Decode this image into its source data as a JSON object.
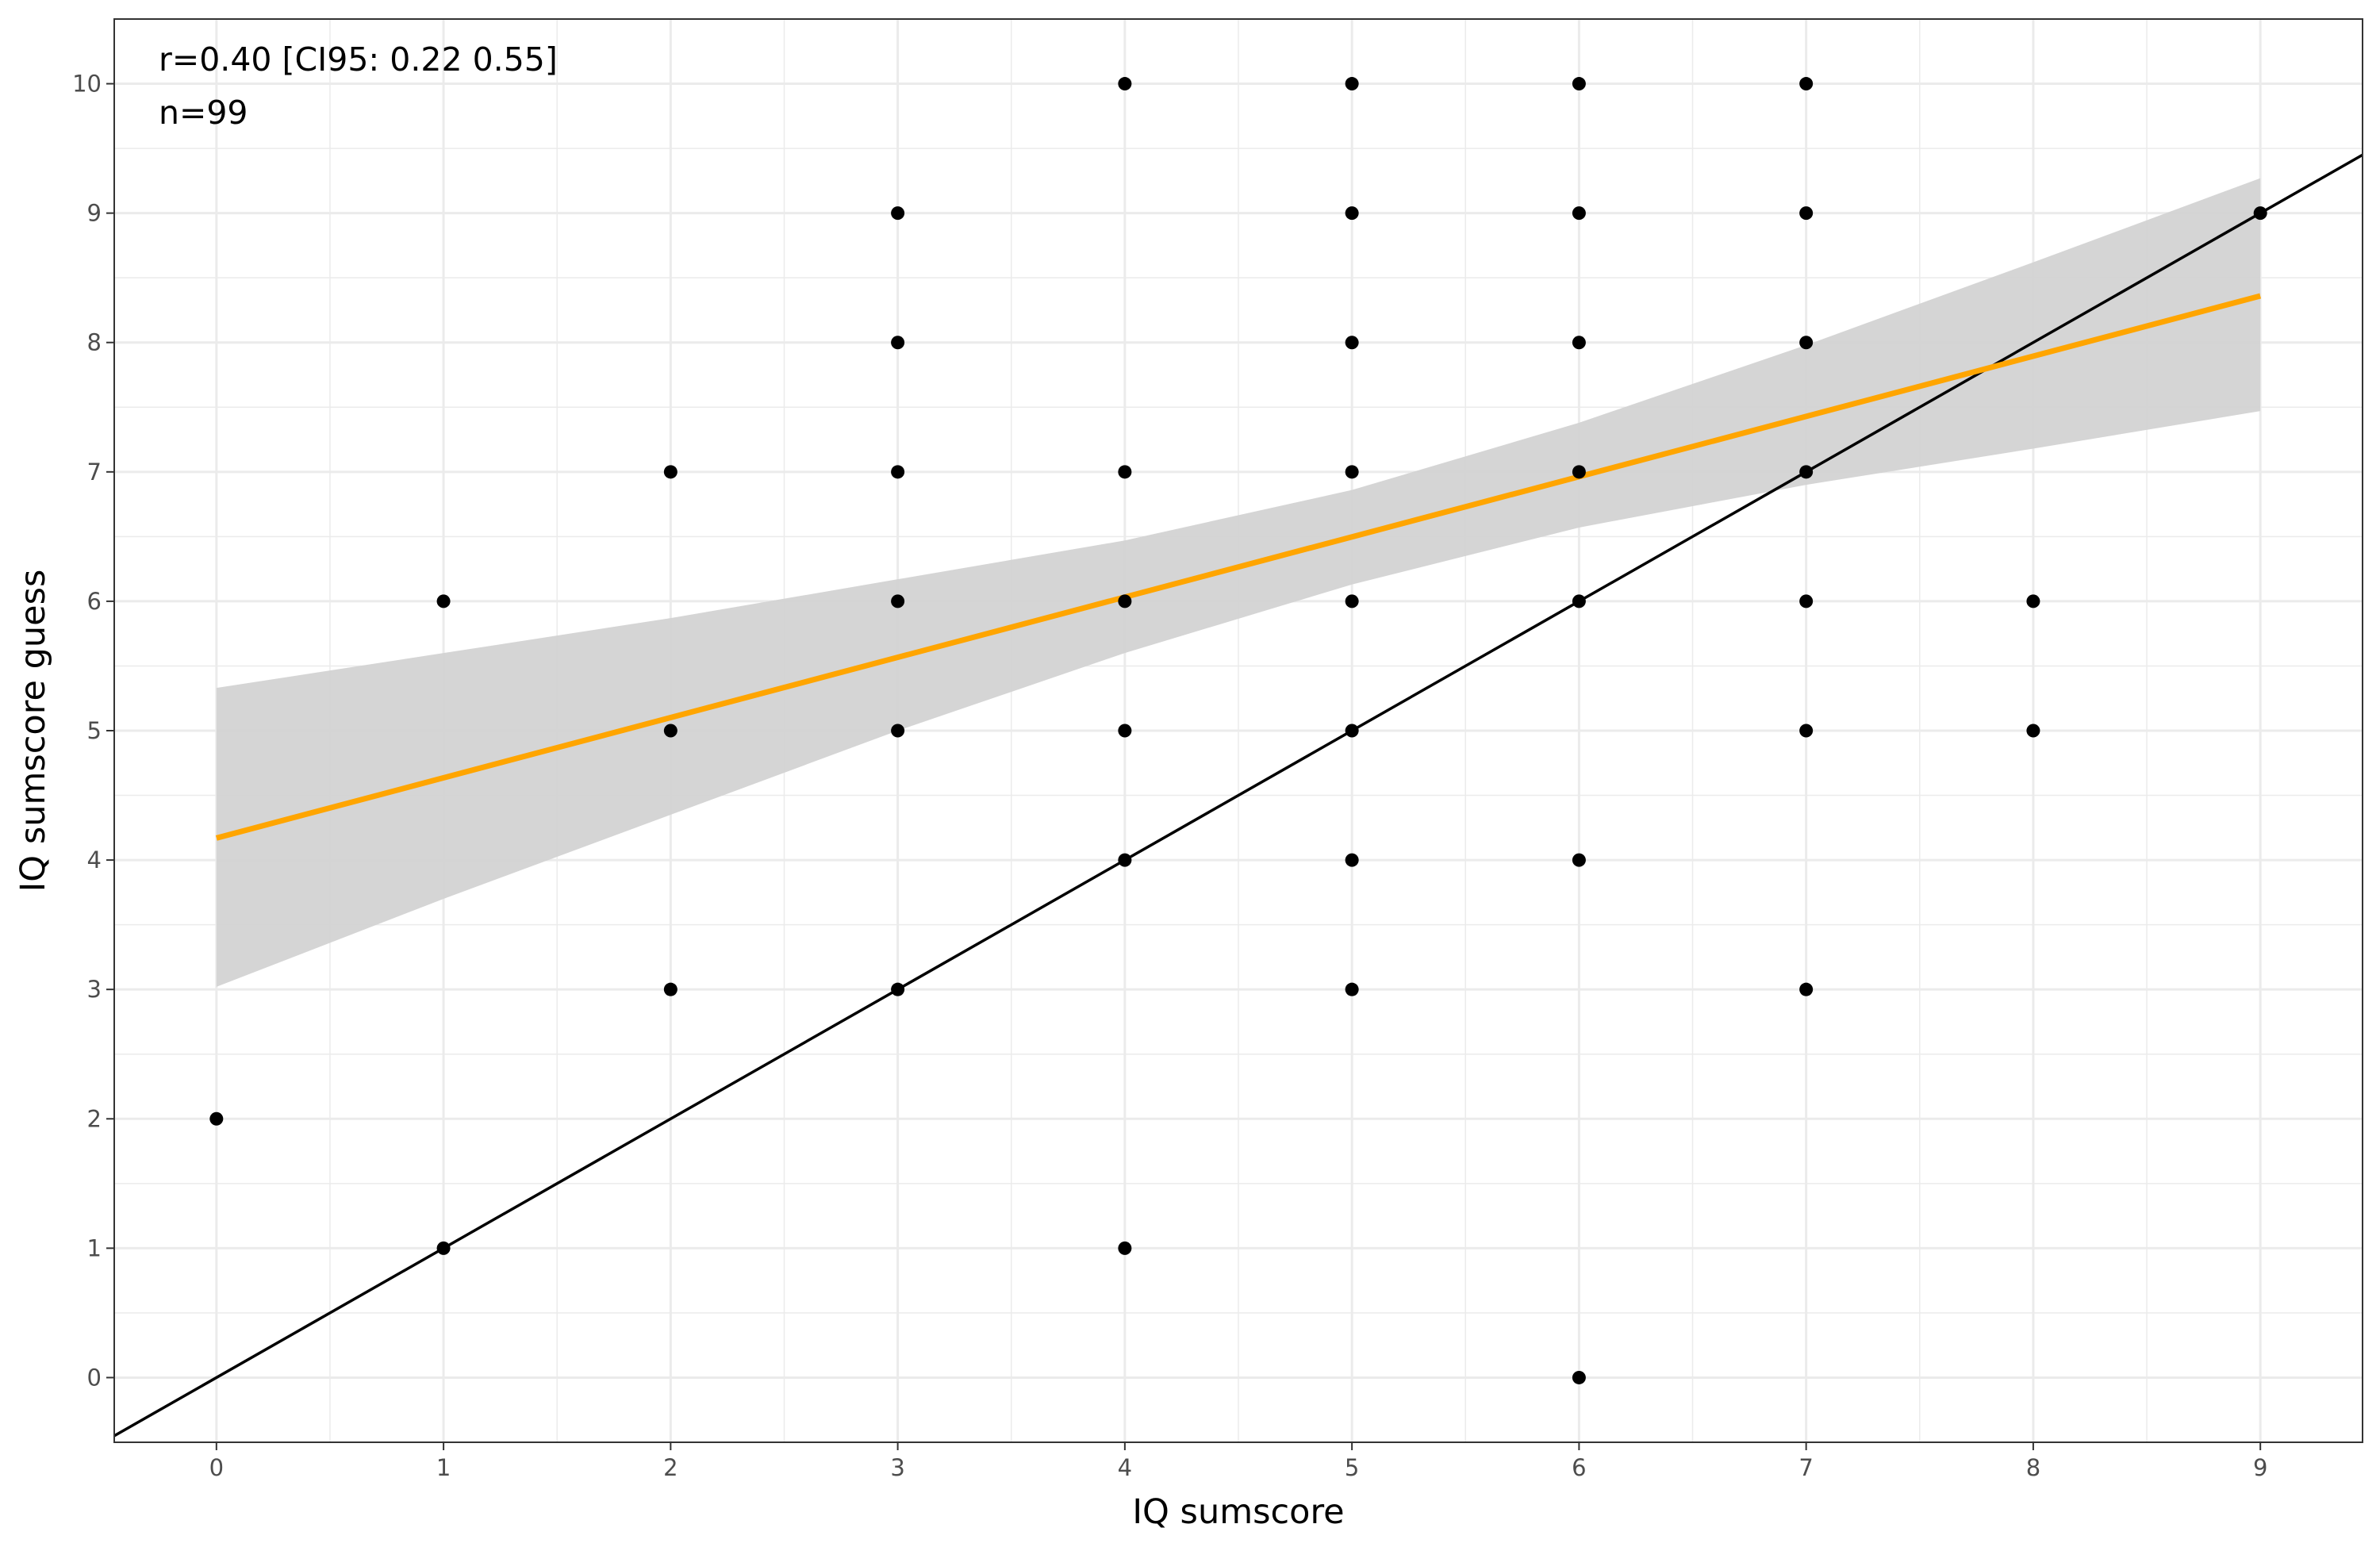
{
  "chart_data": {
    "type": "scatter",
    "xlabel": "IQ sumscore",
    "ylabel": "IQ sumscore guess",
    "xlim": [
      -0.45,
      9.45
    ],
    "ylim": [
      -0.5,
      10.5
    ],
    "x_ticks": [
      0,
      1,
      2,
      3,
      4,
      5,
      6,
      7,
      8,
      9
    ],
    "y_ticks": [
      0,
      1,
      2,
      3,
      4,
      5,
      6,
      7,
      8,
      9,
      10
    ],
    "grid": true,
    "annotations": [
      "r=0.40 [CI95: 0.22 0.55]",
      "n=99"
    ],
    "points": [
      {
        "x": 0,
        "y": 2
      },
      {
        "x": 1,
        "y": 1
      },
      {
        "x": 1,
        "y": 6
      },
      {
        "x": 2,
        "y": 3
      },
      {
        "x": 2,
        "y": 5
      },
      {
        "x": 2,
        "y": 7
      },
      {
        "x": 3,
        "y": 3
      },
      {
        "x": 3,
        "y": 5
      },
      {
        "x": 3,
        "y": 6
      },
      {
        "x": 3,
        "y": 7
      },
      {
        "x": 3,
        "y": 8
      },
      {
        "x": 3,
        "y": 9
      },
      {
        "x": 4,
        "y": 1
      },
      {
        "x": 4,
        "y": 4
      },
      {
        "x": 4,
        "y": 5
      },
      {
        "x": 4,
        "y": 6
      },
      {
        "x": 4,
        "y": 7
      },
      {
        "x": 4,
        "y": 10
      },
      {
        "x": 5,
        "y": 3
      },
      {
        "x": 5,
        "y": 4
      },
      {
        "x": 5,
        "y": 5
      },
      {
        "x": 5,
        "y": 6
      },
      {
        "x": 5,
        "y": 7
      },
      {
        "x": 5,
        "y": 8
      },
      {
        "x": 5,
        "y": 9
      },
      {
        "x": 5,
        "y": 10
      },
      {
        "x": 6,
        "y": 0
      },
      {
        "x": 6,
        "y": 4
      },
      {
        "x": 6,
        "y": 6
      },
      {
        "x": 6,
        "y": 7
      },
      {
        "x": 6,
        "y": 8
      },
      {
        "x": 6,
        "y": 9
      },
      {
        "x": 6,
        "y": 10
      },
      {
        "x": 7,
        "y": 3
      },
      {
        "x": 7,
        "y": 5
      },
      {
        "x": 7,
        "y": 6
      },
      {
        "x": 7,
        "y": 7
      },
      {
        "x": 7,
        "y": 8
      },
      {
        "x": 7,
        "y": 9
      },
      {
        "x": 7,
        "y": 10
      },
      {
        "x": 8,
        "y": 5
      },
      {
        "x": 8,
        "y": 6
      },
      {
        "x": 9,
        "y": 9
      }
    ],
    "regression_line": {
      "x": [
        0,
        9
      ],
      "y": [
        4.17,
        8.36
      ],
      "color": "#FFA500"
    },
    "confidence_band": {
      "x": [
        0,
        1,
        2,
        3,
        4,
        5,
        6,
        7,
        8,
        9
      ],
      "lower": [
        3.02,
        3.7,
        4.35,
        5.0,
        5.6,
        6.13,
        6.57,
        6.9,
        7.18,
        7.47
      ],
      "upper": [
        5.33,
        5.6,
        5.87,
        6.17,
        6.47,
        6.86,
        7.38,
        7.98,
        8.62,
        9.27
      ],
      "color": "#d3d3d3"
    },
    "identity_line": {
      "x": [
        -0.45,
        9.45
      ],
      "y": [
        -0.45,
        9.45
      ],
      "color": "#000000"
    },
    "colors": {
      "points": "#000000",
      "grid": "#ebebeb",
      "border": "#333333"
    }
  }
}
